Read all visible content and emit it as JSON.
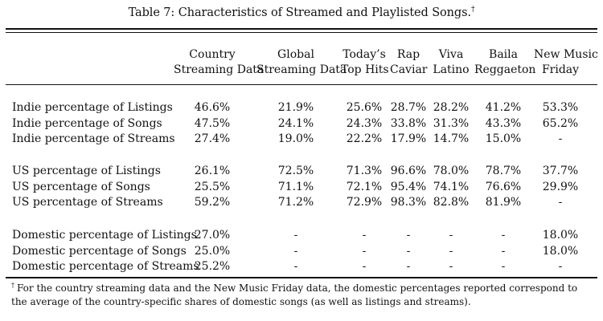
{
  "caption": {
    "text": "Table 7: Characteristics of Streamed and Playlisted Songs.",
    "mark": "†"
  },
  "columns": [
    {
      "line1": "Country",
      "line2": "Streaming Data"
    },
    {
      "line1": "Global",
      "line2": "Streaming Data"
    },
    {
      "line1": "Today’s",
      "line2": "Top Hits"
    },
    {
      "line1": "Rap",
      "line2": "Caviar"
    },
    {
      "line1": "Viva",
      "line2": "Latino"
    },
    {
      "line1": "Baila",
      "line2": "Reggaeton"
    },
    {
      "line1": "New Music",
      "line2": "Friday"
    }
  ],
  "groups": [
    {
      "rows": [
        {
          "label": "Indie percentage of Listings",
          "values": [
            "46.6%",
            "21.9%",
            "25.6%",
            "28.7%",
            "28.2%",
            "41.2%",
            "53.3%"
          ]
        },
        {
          "label": "Indie percentage of Songs",
          "values": [
            "47.5%",
            "24.1%",
            "24.3%",
            "33.8%",
            "31.3%",
            "43.3%",
            "65.2%"
          ]
        },
        {
          "label": "Indie percentage of Streams",
          "values": [
            "27.4%",
            "19.0%",
            "22.2%",
            "17.9%",
            "14.7%",
            "15.0%",
            "-"
          ]
        }
      ]
    },
    {
      "rows": [
        {
          "label": "US percentage of Listings",
          "values": [
            "26.1%",
            "72.5%",
            "71.3%",
            "96.6%",
            "78.0%",
            "78.7%",
            "37.7%"
          ]
        },
        {
          "label": "US percentage of Songs",
          "values": [
            "25.5%",
            "71.1%",
            "72.1%",
            "95.4%",
            "74.1%",
            "76.6%",
            "29.9%"
          ]
        },
        {
          "label": "US percentage of Streams",
          "values": [
            "59.2%",
            "71.2%",
            "72.9%",
            "98.3%",
            "82.8%",
            "81.9%",
            "-"
          ]
        }
      ]
    },
    {
      "rows": [
        {
          "label": "Domestic percentage of Listings",
          "values": [
            "27.0%",
            "-",
            "-",
            "-",
            "-",
            "-",
            "18.0%"
          ]
        },
        {
          "label": "Domestic percentage of Songs",
          "values": [
            "25.0%",
            "-",
            "-",
            "-",
            "-",
            "-",
            "18.0%"
          ]
        },
        {
          "label": "Domestic percentage of Streams",
          "values": [
            "25.2%",
            "-",
            "-",
            "-",
            "-",
            "-",
            "-"
          ]
        }
      ]
    }
  ],
  "footnote": {
    "mark": "†",
    "text": "For the country streaming data and the New Music Friday data, the domestic percentages reported correspond to the average of the country-specific shares of domestic songs (as well as listings and streams)."
  }
}
